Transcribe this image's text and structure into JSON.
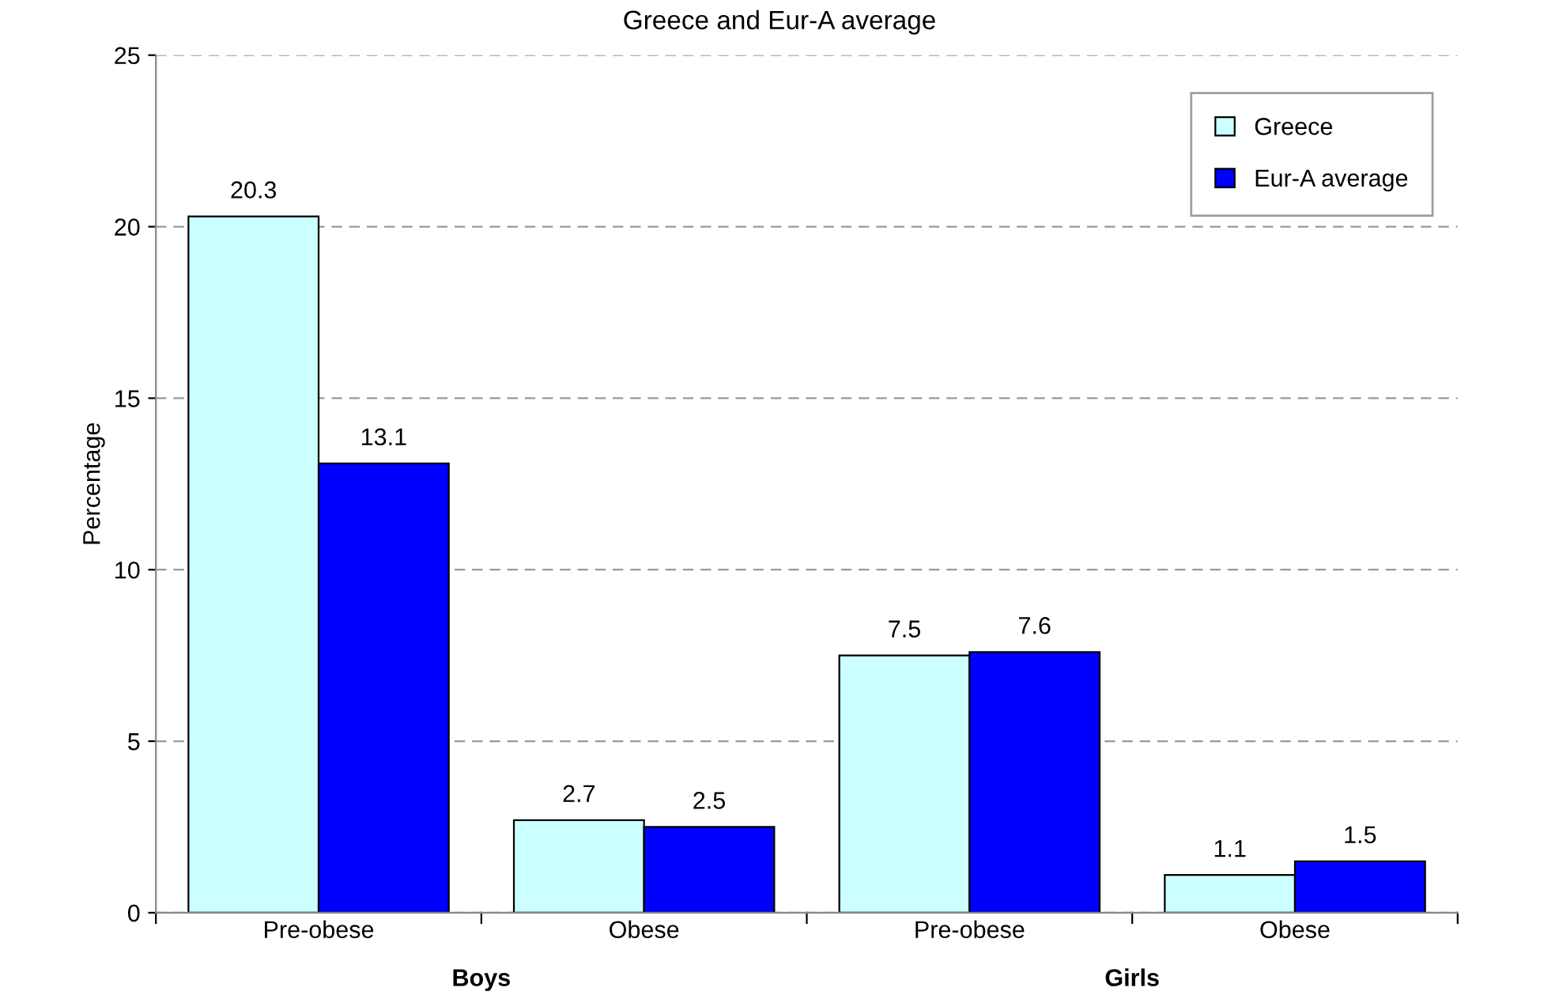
{
  "chart_data": {
    "type": "bar",
    "title": "Greece and Eur-A average",
    "ylabel": "Percentage",
    "categories": [
      "Pre-obese",
      "Obese",
      "Pre-obese",
      "Obese"
    ],
    "series": [
      {
        "name": "Greece",
        "color": "#ccffff",
        "values": [
          20.3,
          2.7,
          7.5,
          1.1
        ]
      },
      {
        "name": "Eur-A average",
        "color": "#0000ff",
        "values": [
          13.1,
          2.5,
          7.6,
          1.5
        ]
      }
    ],
    "annotations": [
      "Boys",
      "Girls"
    ],
    "ylim": [
      0,
      25
    ],
    "yticks": [
      0,
      5,
      10,
      15,
      20,
      25
    ],
    "grid": "y",
    "legend": "top right",
    "data_labels": true
  }
}
